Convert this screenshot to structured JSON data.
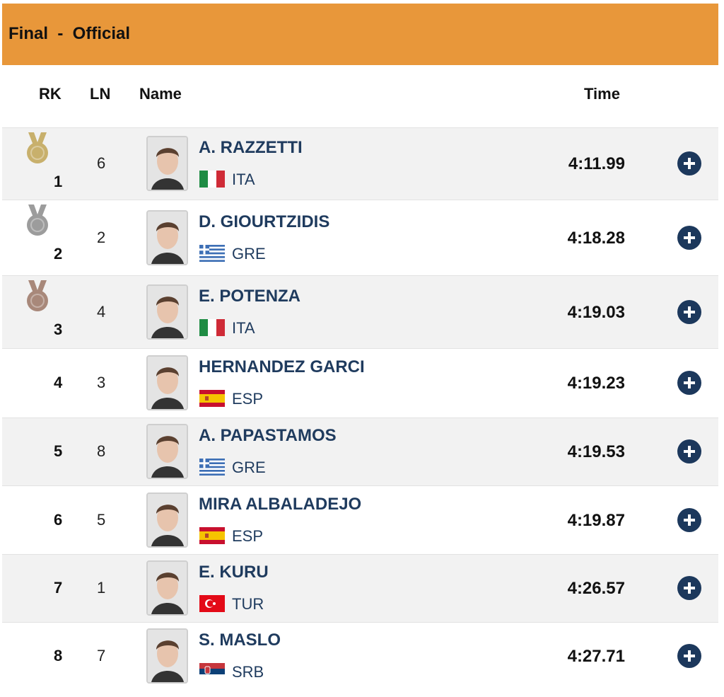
{
  "header": {
    "title": "Final  -  Official"
  },
  "table": {
    "columns": [
      "RK",
      "LN",
      "Name",
      "Time"
    ],
    "rows": [
      {
        "rank": "1",
        "lane": "6",
        "name": "A. RAZZETTI",
        "country": "ITA",
        "time": "4:11.99"
      },
      {
        "rank": "2",
        "lane": "2",
        "name": "D. GIOURTZIDIS",
        "country": "GRE",
        "time": "4:18.28"
      },
      {
        "rank": "3",
        "lane": "4",
        "name": "E. POTENZA",
        "country": "ITA",
        "time": "4:19.03"
      },
      {
        "rank": "4",
        "lane": "3",
        "name": "HERNANDEZ GARCI",
        "country": "ESP",
        "time": "4:19.23"
      },
      {
        "rank": "5",
        "lane": "8",
        "name": "A. PAPASTAMOS",
        "country": "GRE",
        "time": "4:19.53"
      },
      {
        "rank": "6",
        "lane": "5",
        "name": "MIRA ALBALADEJO",
        "country": "ESP",
        "time": "4:19.87"
      },
      {
        "rank": "7",
        "lane": "1",
        "name": "E. KURU",
        "country": "TUR",
        "time": "4:26.57"
      },
      {
        "rank": "8",
        "lane": "7",
        "name": "S. MASLO",
        "country": "SRB",
        "time": "4:27.71"
      }
    ]
  }
}
